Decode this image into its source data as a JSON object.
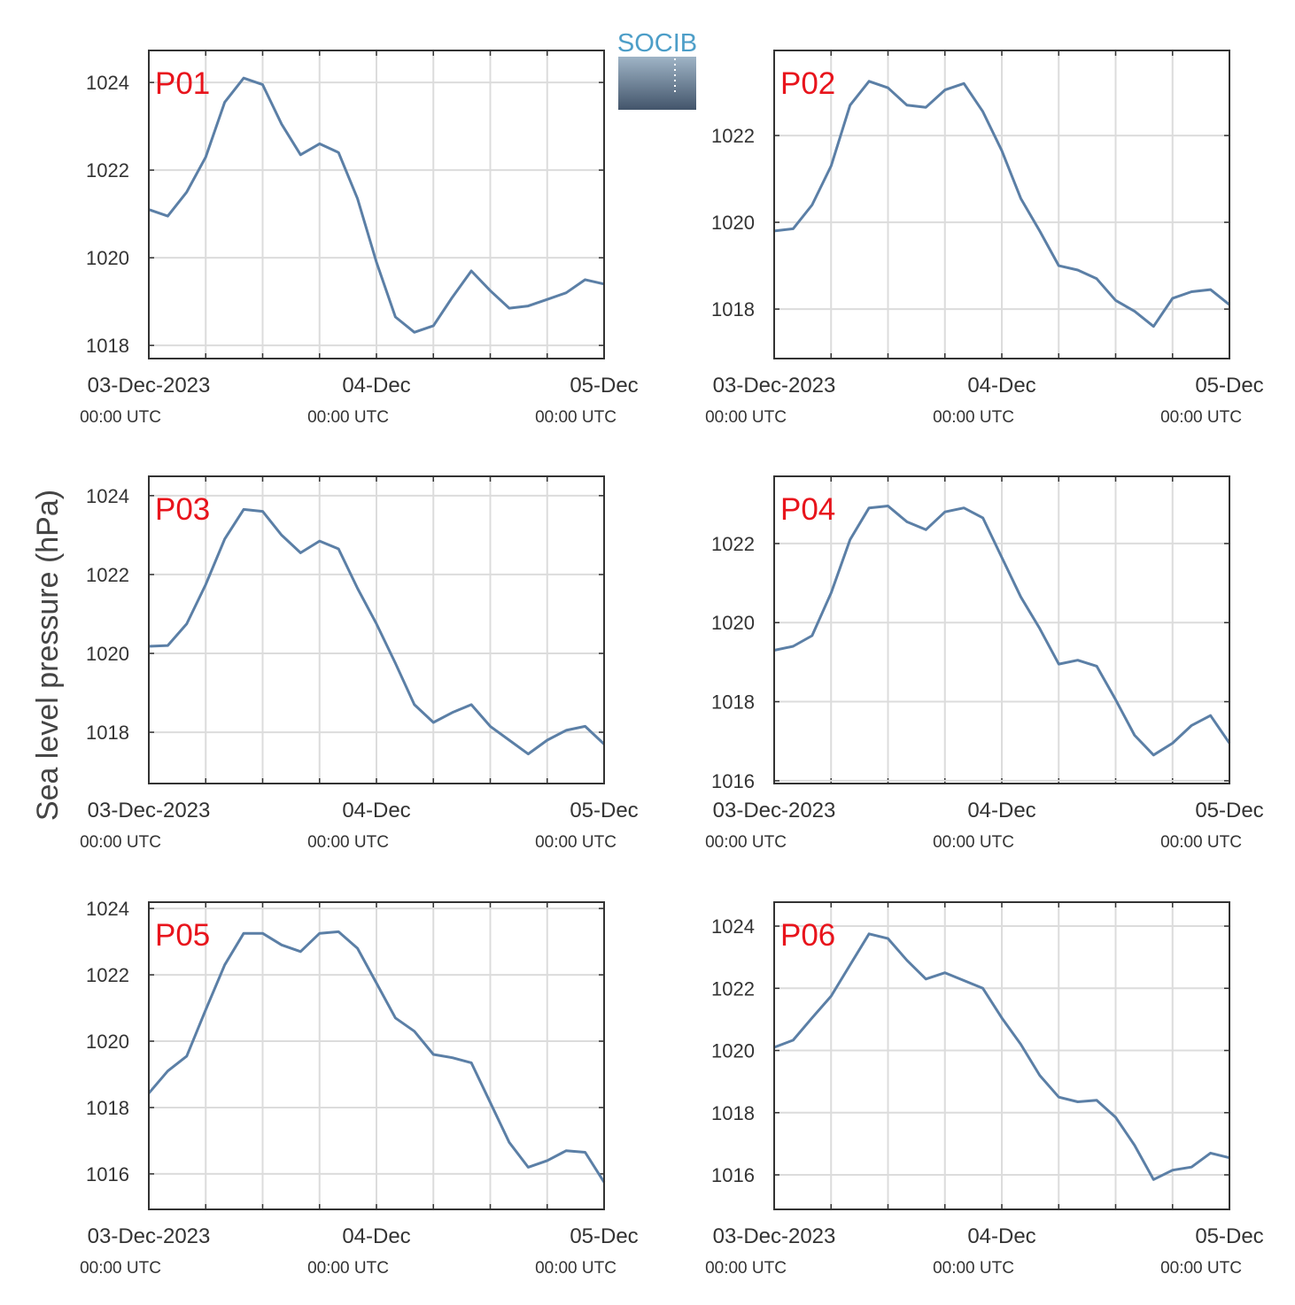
{
  "ylabel": "Sea level pressure (hPa)",
  "logo": "SOCIB",
  "chart_data": [
    {
      "type": "line",
      "title": "P01",
      "color": "#5b7fa6",
      "grid": true,
      "xlim": [
        "2023-12-03T00:00Z",
        "2023-12-05T00:00Z"
      ],
      "xticks": [
        {
          "value": "2023-12-03T00:00Z",
          "label": [
            "03-Dec-2023",
            "00:00 UTC"
          ]
        },
        {
          "value": "2023-12-04T00:00Z",
          "label": [
            "04-Dec",
            "00:00 UTC"
          ]
        },
        {
          "value": "2023-12-05T00:00Z",
          "label": [
            "05-Dec",
            "00:00 UTC"
          ]
        }
      ],
      "xgrid": [
        "2023-12-03T00:00Z",
        "2023-12-03T06:00Z",
        "2023-12-03T12:00Z",
        "2023-12-03T18:00Z",
        "2023-12-04T00:00Z",
        "2023-12-04T06:00Z",
        "2023-12-04T12:00Z",
        "2023-12-04T18:00Z",
        "2023-12-05T00:00Z"
      ],
      "ylim": [
        1017.7,
        1024.73
      ],
      "yticks": [
        1018,
        1020,
        1022,
        1024
      ],
      "x": [
        "2023-12-03T00:00Z",
        "2023-12-03T02:00Z",
        "2023-12-03T04:00Z",
        "2023-12-03T06:00Z",
        "2023-12-03T08:00Z",
        "2023-12-03T10:00Z",
        "2023-12-03T12:00Z",
        "2023-12-03T14:00Z",
        "2023-12-03T16:00Z",
        "2023-12-03T18:00Z",
        "2023-12-03T20:00Z",
        "2023-12-03T22:00Z",
        "2023-12-04T00:00Z",
        "2023-12-04T02:00Z",
        "2023-12-04T04:00Z",
        "2023-12-04T06:00Z",
        "2023-12-04T08:00Z",
        "2023-12-04T10:00Z",
        "2023-12-04T12:00Z",
        "2023-12-04T14:00Z",
        "2023-12-04T16:00Z",
        "2023-12-04T18:00Z",
        "2023-12-04T20:00Z",
        "2023-12-04T22:00Z",
        "2023-12-05T00:00Z"
      ],
      "values": [
        1021.1,
        1020.95,
        1021.5,
        1022.3,
        1023.55,
        1024.1,
        1023.95,
        1023.05,
        1022.35,
        1022.6,
        1022.4,
        1021.35,
        1019.9,
        1018.65,
        1018.3,
        1018.45,
        1019.1,
        1019.7,
        1019.25,
        1018.85,
        1018.9,
        1019.05,
        1019.2,
        1019.5,
        1019.4
      ]
    },
    {
      "type": "line",
      "title": "P02",
      "color": "#5b7fa6",
      "grid": true,
      "xlim": [
        "2023-12-03T00:00Z",
        "2023-12-05T00:00Z"
      ],
      "xticks": [
        {
          "value": "2023-12-03T00:00Z",
          "label": [
            "03-Dec-2023",
            "00:00 UTC"
          ]
        },
        {
          "value": "2023-12-04T00:00Z",
          "label": [
            "04-Dec",
            "00:00 UTC"
          ]
        },
        {
          "value": "2023-12-05T00:00Z",
          "label": [
            "05-Dec",
            "00:00 UTC"
          ]
        }
      ],
      "xgrid": [
        "2023-12-03T00:00Z",
        "2023-12-03T06:00Z",
        "2023-12-03T12:00Z",
        "2023-12-03T18:00Z",
        "2023-12-04T00:00Z",
        "2023-12-04T06:00Z",
        "2023-12-04T12:00Z",
        "2023-12-04T18:00Z",
        "2023-12-05T00:00Z"
      ],
      "ylim": [
        1016.86,
        1023.96
      ],
      "yticks": [
        1018,
        1020,
        1022
      ],
      "x": [
        "2023-12-03T00:00Z",
        "2023-12-03T02:00Z",
        "2023-12-03T04:00Z",
        "2023-12-03T06:00Z",
        "2023-12-03T08:00Z",
        "2023-12-03T10:00Z",
        "2023-12-03T12:00Z",
        "2023-12-03T14:00Z",
        "2023-12-03T16:00Z",
        "2023-12-03T18:00Z",
        "2023-12-03T20:00Z",
        "2023-12-03T22:00Z",
        "2023-12-04T00:00Z",
        "2023-12-04T02:00Z",
        "2023-12-04T04:00Z",
        "2023-12-04T06:00Z",
        "2023-12-04T08:00Z",
        "2023-12-04T10:00Z",
        "2023-12-04T12:00Z",
        "2023-12-04T14:00Z",
        "2023-12-04T16:00Z",
        "2023-12-04T18:00Z",
        "2023-12-04T20:00Z",
        "2023-12-04T22:00Z",
        "2023-12-05T00:00Z"
      ],
      "values": [
        1019.8,
        1019.85,
        1020.4,
        1021.3,
        1022.7,
        1023.25,
        1023.1,
        1022.7,
        1022.65,
        1023.05,
        1023.2,
        1022.55,
        1021.65,
        1020.55,
        1019.8,
        1019.0,
        1018.9,
        1018.7,
        1018.2,
        1017.95,
        1017.6,
        1018.25,
        1018.4,
        1018.45,
        1018.1
      ]
    },
    {
      "type": "line",
      "title": "P03",
      "color": "#5b7fa6",
      "grid": true,
      "xlim": [
        "2023-12-03T00:00Z",
        "2023-12-05T00:00Z"
      ],
      "xticks": [
        {
          "value": "2023-12-03T00:00Z",
          "label": [
            "03-Dec-2023",
            "00:00 UTC"
          ]
        },
        {
          "value": "2023-12-04T00:00Z",
          "label": [
            "04-Dec",
            "00:00 UTC"
          ]
        },
        {
          "value": "2023-12-05T00:00Z",
          "label": [
            "05-Dec",
            "00:00 UTC"
          ]
        }
      ],
      "xgrid": [
        "2023-12-03T00:00Z",
        "2023-12-03T06:00Z",
        "2023-12-03T12:00Z",
        "2023-12-03T18:00Z",
        "2023-12-04T00:00Z",
        "2023-12-04T06:00Z",
        "2023-12-04T12:00Z",
        "2023-12-04T18:00Z",
        "2023-12-05T00:00Z"
      ],
      "ylim": [
        1016.7,
        1024.49
      ],
      "yticks": [
        1018,
        1020,
        1022,
        1024
      ],
      "x": [
        "2023-12-03T00:00Z",
        "2023-12-03T02:00Z",
        "2023-12-03T04:00Z",
        "2023-12-03T06:00Z",
        "2023-12-03T08:00Z",
        "2023-12-03T10:00Z",
        "2023-12-03T12:00Z",
        "2023-12-03T14:00Z",
        "2023-12-03T16:00Z",
        "2023-12-03T18:00Z",
        "2023-12-03T20:00Z",
        "2023-12-03T22:00Z",
        "2023-12-04T00:00Z",
        "2023-12-04T02:00Z",
        "2023-12-04T04:00Z",
        "2023-12-04T06:00Z",
        "2023-12-04T08:00Z",
        "2023-12-04T10:00Z",
        "2023-12-04T12:00Z",
        "2023-12-04T14:00Z",
        "2023-12-04T16:00Z",
        "2023-12-04T18:00Z",
        "2023-12-04T20:00Z",
        "2023-12-04T22:00Z",
        "2023-12-05T00:00Z"
      ],
      "values": [
        1020.18,
        1020.2,
        1020.75,
        1021.75,
        1022.9,
        1023.65,
        1023.6,
        1023.0,
        1022.55,
        1022.85,
        1022.65,
        1021.65,
        1020.75,
        1019.75,
        1018.7,
        1018.25,
        1018.5,
        1018.7,
        1018.15,
        1017.8,
        1017.45,
        1017.8,
        1018.05,
        1018.15,
        1017.7
      ]
    },
    {
      "type": "line",
      "title": "P04",
      "color": "#5b7fa6",
      "grid": true,
      "xlim": [
        "2023-12-03T00:00Z",
        "2023-12-05T00:00Z"
      ],
      "xticks": [
        {
          "value": "2023-12-03T00:00Z",
          "label": [
            "03-Dec-2023",
            "00:00 UTC"
          ]
        },
        {
          "value": "2023-12-04T00:00Z",
          "label": [
            "04-Dec",
            "00:00 UTC"
          ]
        },
        {
          "value": "2023-12-05T00:00Z",
          "label": [
            "05-Dec",
            "00:00 UTC"
          ]
        }
      ],
      "xgrid": [
        "2023-12-03T00:00Z",
        "2023-12-03T06:00Z",
        "2023-12-03T12:00Z",
        "2023-12-03T18:00Z",
        "2023-12-04T00:00Z",
        "2023-12-04T06:00Z",
        "2023-12-04T12:00Z",
        "2023-12-04T18:00Z",
        "2023-12-05T00:00Z"
      ],
      "ylim": [
        1015.93,
        1023.7
      ],
      "yticks": [
        1016,
        1018,
        1020,
        1022
      ],
      "x": [
        "2023-12-03T00:00Z",
        "2023-12-03T02:00Z",
        "2023-12-03T04:00Z",
        "2023-12-03T06:00Z",
        "2023-12-03T08:00Z",
        "2023-12-03T10:00Z",
        "2023-12-03T12:00Z",
        "2023-12-03T14:00Z",
        "2023-12-03T16:00Z",
        "2023-12-03T18:00Z",
        "2023-12-03T20:00Z",
        "2023-12-03T22:00Z",
        "2023-12-04T00:00Z",
        "2023-12-04T02:00Z",
        "2023-12-04T04:00Z",
        "2023-12-04T06:00Z",
        "2023-12-04T08:00Z",
        "2023-12-04T10:00Z",
        "2023-12-04T12:00Z",
        "2023-12-04T14:00Z",
        "2023-12-04T16:00Z",
        "2023-12-04T18:00Z",
        "2023-12-04T20:00Z",
        "2023-12-04T22:00Z",
        "2023-12-05T00:00Z"
      ],
      "values": [
        1019.3,
        1019.4,
        1019.67,
        1020.75,
        1022.1,
        1022.9,
        1022.95,
        1022.55,
        1022.35,
        1022.8,
        1022.9,
        1022.65,
        1021.65,
        1020.65,
        1019.85,
        1018.95,
        1019.05,
        1018.9,
        1018.05,
        1017.15,
        1016.65,
        1016.95,
        1017.4,
        1017.65,
        1016.95
      ]
    },
    {
      "type": "line",
      "title": "P05",
      "color": "#5b7fa6",
      "grid": true,
      "xlim": [
        "2023-12-03T00:00Z",
        "2023-12-05T00:00Z"
      ],
      "xticks": [
        {
          "value": "2023-12-03T00:00Z",
          "label": [
            "03-Dec-2023",
            "00:00 UTC"
          ]
        },
        {
          "value": "2023-12-04T00:00Z",
          "label": [
            "04-Dec",
            "00:00 UTC"
          ]
        },
        {
          "value": "2023-12-05T00:00Z",
          "label": [
            "05-Dec",
            "00:00 UTC"
          ]
        }
      ],
      "xgrid": [
        "2023-12-03T00:00Z",
        "2023-12-03T06:00Z",
        "2023-12-03T12:00Z",
        "2023-12-03T18:00Z",
        "2023-12-04T00:00Z",
        "2023-12-04T06:00Z",
        "2023-12-04T12:00Z",
        "2023-12-04T18:00Z",
        "2023-12-05T00:00Z"
      ],
      "ylim": [
        1014.93,
        1024.19
      ],
      "yticks": [
        1016,
        1018,
        1020,
        1022,
        1024
      ],
      "x": [
        "2023-12-03T00:00Z",
        "2023-12-03T02:00Z",
        "2023-12-03T04:00Z",
        "2023-12-03T06:00Z",
        "2023-12-03T08:00Z",
        "2023-12-03T10:00Z",
        "2023-12-03T12:00Z",
        "2023-12-03T14:00Z",
        "2023-12-03T16:00Z",
        "2023-12-03T18:00Z",
        "2023-12-03T20:00Z",
        "2023-12-03T22:00Z",
        "2023-12-04T00:00Z",
        "2023-12-04T02:00Z",
        "2023-12-04T04:00Z",
        "2023-12-04T06:00Z",
        "2023-12-04T08:00Z",
        "2023-12-04T10:00Z",
        "2023-12-04T12:00Z",
        "2023-12-04T14:00Z",
        "2023-12-04T16:00Z",
        "2023-12-04T18:00Z",
        "2023-12-04T20:00Z",
        "2023-12-04T22:00Z",
        "2023-12-05T00:00Z"
      ],
      "values": [
        1018.43,
        1019.1,
        1019.55,
        1020.95,
        1022.3,
        1023.25,
        1023.25,
        1022.9,
        1022.7,
        1023.25,
        1023.3,
        1022.8,
        1021.75,
        1020.7,
        1020.3,
        1019.6,
        1019.5,
        1019.35,
        1018.15,
        1016.95,
        1016.2,
        1016.4,
        1016.7,
        1016.65,
        1015.75
      ]
    },
    {
      "type": "line",
      "title": "P06",
      "color": "#5b7fa6",
      "grid": true,
      "xlim": [
        "2023-12-03T00:00Z",
        "2023-12-05T00:00Z"
      ],
      "xticks": [
        {
          "value": "2023-12-03T00:00Z",
          "label": [
            "03-Dec-2023",
            "00:00 UTC"
          ]
        },
        {
          "value": "2023-12-04T00:00Z",
          "label": [
            "04-Dec",
            "00:00 UTC"
          ]
        },
        {
          "value": "2023-12-05T00:00Z",
          "label": [
            "05-Dec",
            "00:00 UTC"
          ]
        }
      ],
      "xgrid": [
        "2023-12-03T00:00Z",
        "2023-12-03T06:00Z",
        "2023-12-03T12:00Z",
        "2023-12-03T18:00Z",
        "2023-12-04T00:00Z",
        "2023-12-04T06:00Z",
        "2023-12-04T12:00Z",
        "2023-12-04T18:00Z",
        "2023-12-05T00:00Z"
      ],
      "ylim": [
        1014.89,
        1024.77
      ],
      "yticks": [
        1016,
        1018,
        1020,
        1022,
        1024
      ],
      "x": [
        "2023-12-03T00:00Z",
        "2023-12-03T02:00Z",
        "2023-12-03T04:00Z",
        "2023-12-03T06:00Z",
        "2023-12-03T08:00Z",
        "2023-12-03T10:00Z",
        "2023-12-03T12:00Z",
        "2023-12-03T14:00Z",
        "2023-12-03T16:00Z",
        "2023-12-03T18:00Z",
        "2023-12-03T20:00Z",
        "2023-12-03T22:00Z",
        "2023-12-04T00:00Z",
        "2023-12-04T02:00Z",
        "2023-12-04T04:00Z",
        "2023-12-04T06:00Z",
        "2023-12-04T08:00Z",
        "2023-12-04T10:00Z",
        "2023-12-04T12:00Z",
        "2023-12-04T14:00Z",
        "2023-12-04T16:00Z",
        "2023-12-04T18:00Z",
        "2023-12-04T20:00Z",
        "2023-12-04T22:00Z",
        "2023-12-05T00:00Z"
      ],
      "values": [
        1020.1,
        1020.33,
        1021.05,
        1021.75,
        1022.75,
        1023.75,
        1023.6,
        1022.9,
        1022.3,
        1022.5,
        1022.25,
        1022.0,
        1021.05,
        1020.2,
        1019.2,
        1018.5,
        1018.35,
        1018.4,
        1017.85,
        1016.95,
        1015.85,
        1016.15,
        1016.25,
        1016.7,
        1016.55
      ]
    }
  ]
}
